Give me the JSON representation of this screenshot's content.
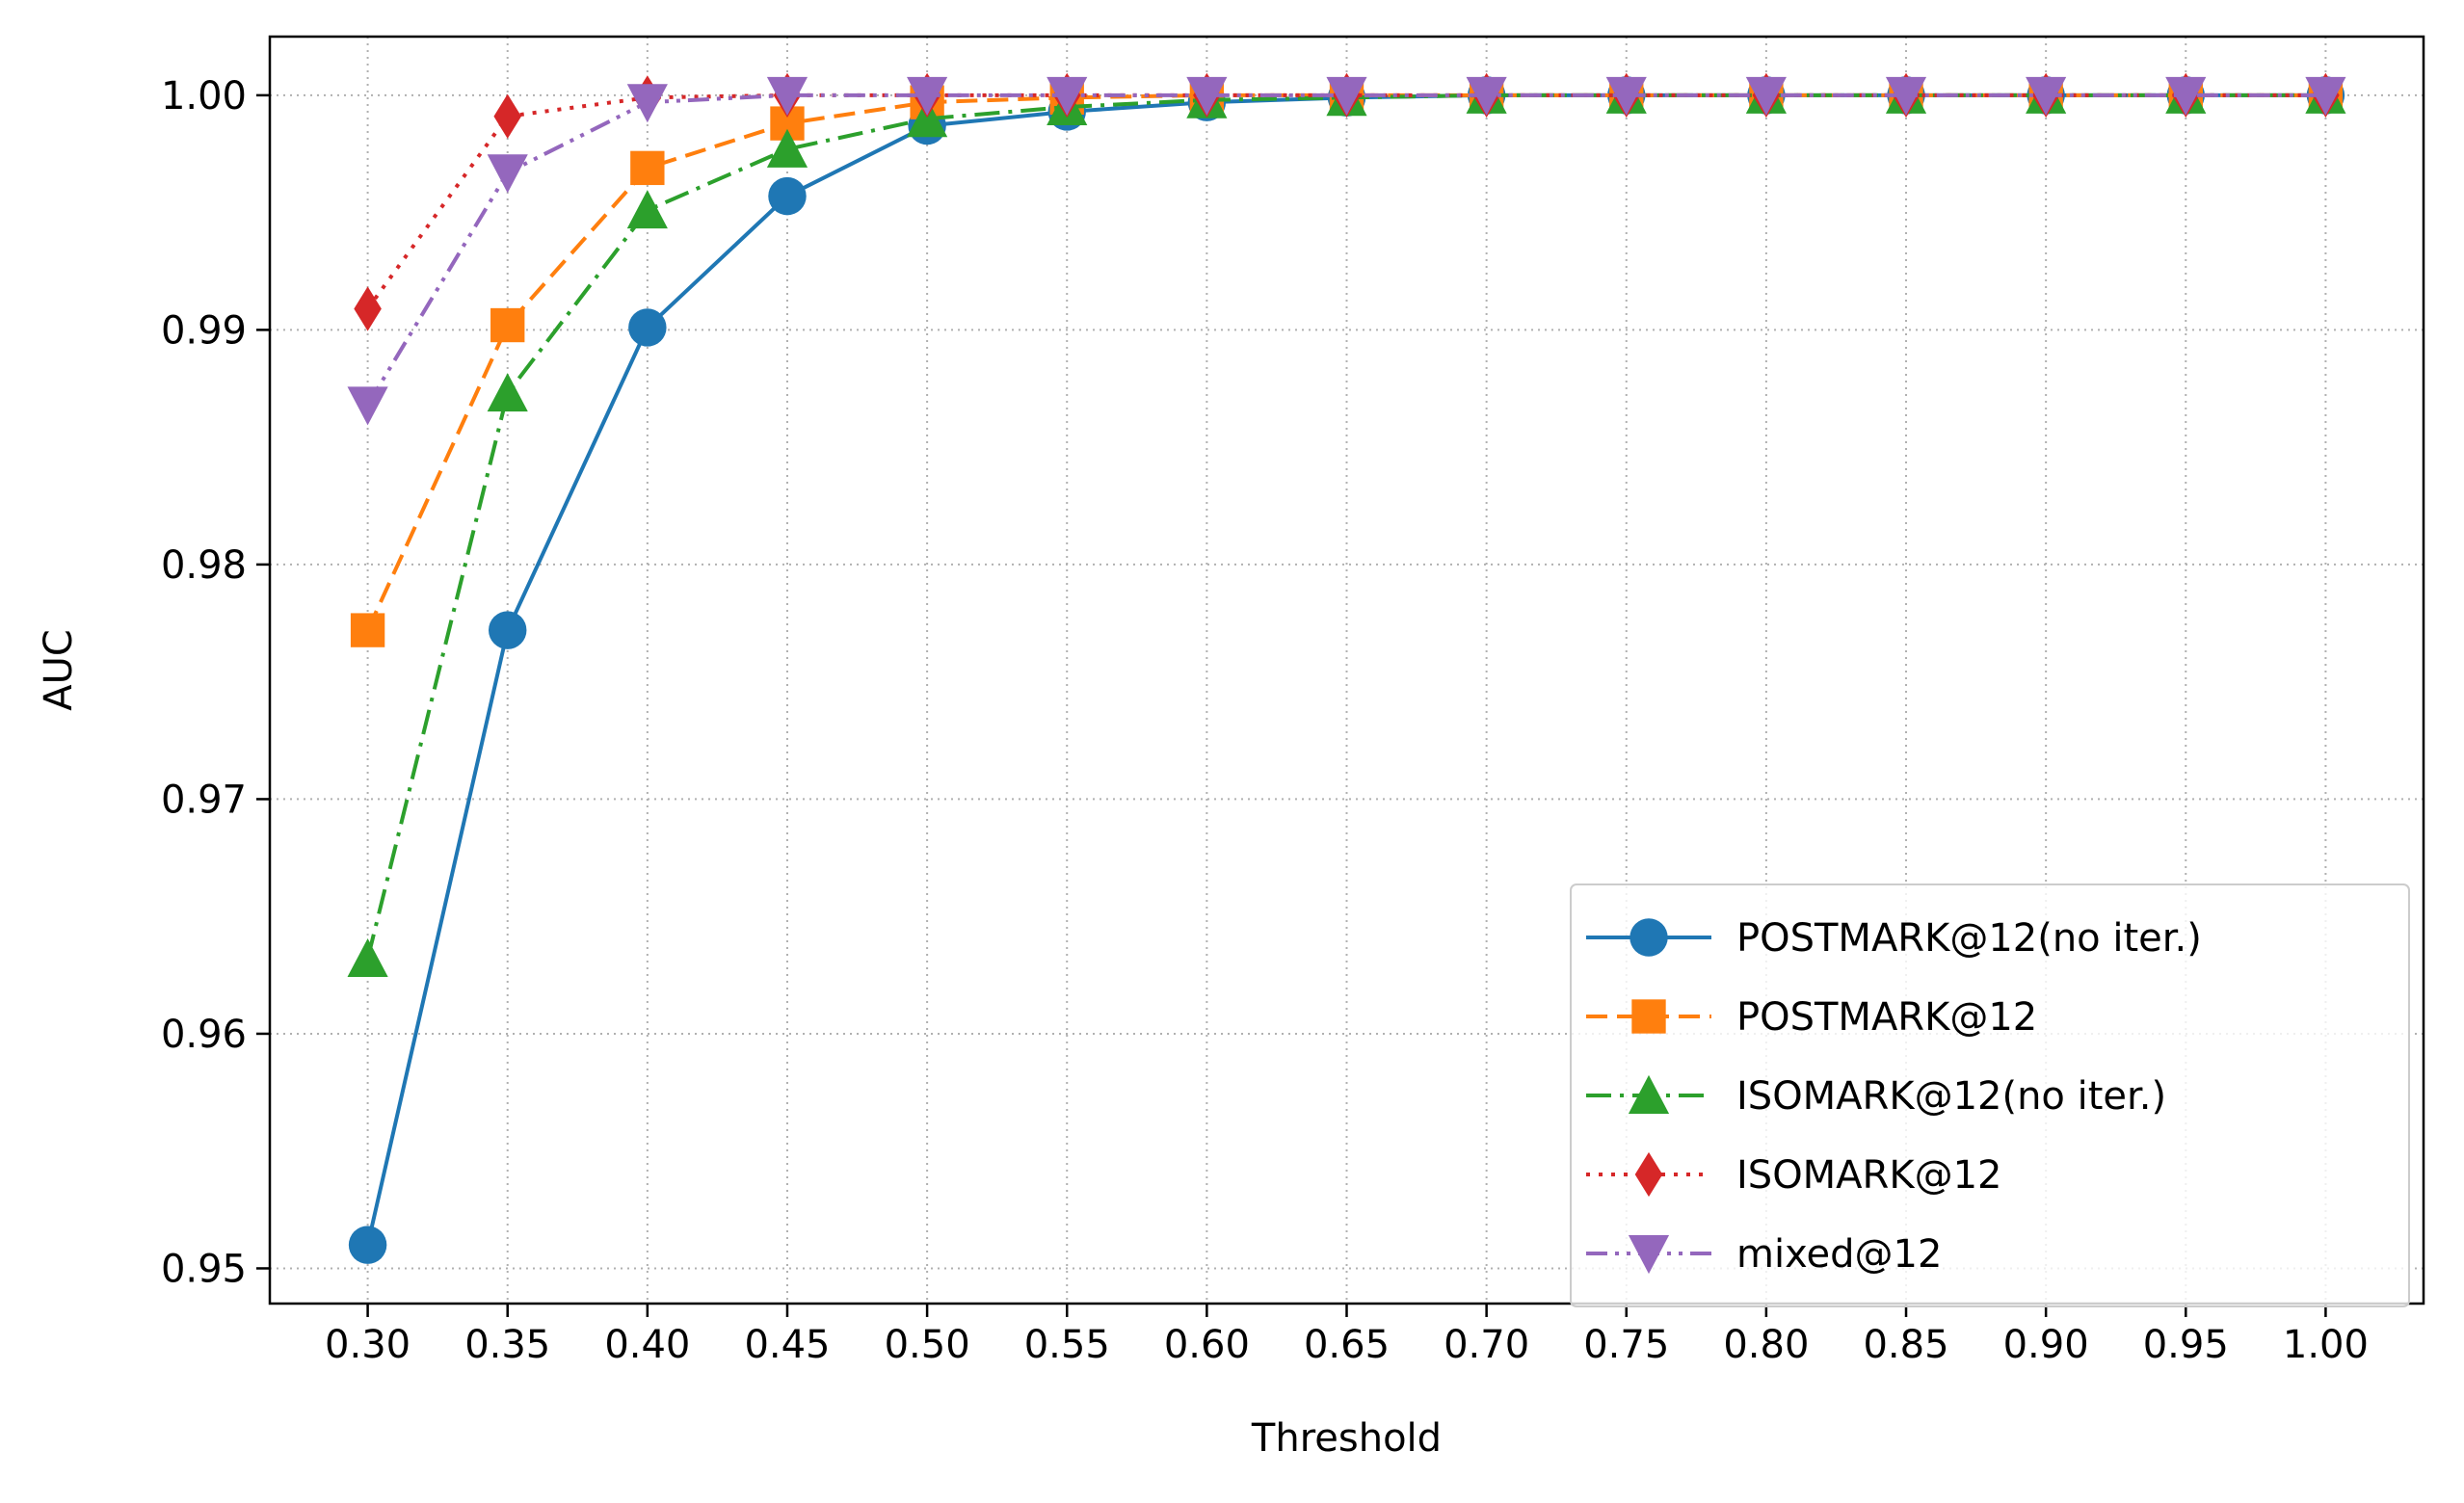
{
  "chart_data": {
    "type": "line",
    "title": "",
    "xlabel": "Threshold",
    "ylabel": "AUC",
    "x": [
      0.3,
      0.35,
      0.4,
      0.45,
      0.5,
      0.55,
      0.6,
      0.65,
      0.7,
      0.75,
      0.8,
      0.85,
      0.9,
      0.95,
      1.0
    ],
    "x_tick_labels": [
      "0.30",
      "0.35",
      "0.40",
      "0.45",
      "0.50",
      "0.55",
      "0.60",
      "0.65",
      "0.70",
      "0.75",
      "0.80",
      "0.85",
      "0.90",
      "0.95",
      "1.00"
    ],
    "y_ticks": [
      0.95,
      0.96,
      0.97,
      0.98,
      0.99,
      1.0
    ],
    "y_tick_labels": [
      "0.95",
      "0.96",
      "0.97",
      "0.98",
      "0.99",
      "1.00"
    ],
    "xlim": [
      0.265,
      1.035
    ],
    "ylim": [
      0.9485,
      1.0025
    ],
    "grid": true,
    "legend_position": "lower-right",
    "series": [
      {
        "name": "POSTMARK@12(no iter.)",
        "color": "#1f77b4",
        "line_style": "solid",
        "marker": "circle",
        "values": [
          0.951,
          0.9772,
          0.9901,
          0.9957,
          0.9987,
          0.9993,
          0.9997,
          0.9999,
          1.0,
          1.0,
          1.0,
          1.0,
          1.0,
          1.0,
          1.0
        ]
      },
      {
        "name": "POSTMARK@12",
        "color": "#ff7f0e",
        "line_style": "dashed",
        "marker": "square",
        "values": [
          0.9772,
          0.9902,
          0.9969,
          0.9988,
          0.9997,
          0.9999,
          1.0,
          1.0,
          1.0,
          1.0,
          1.0,
          1.0,
          1.0,
          1.0,
          1.0
        ]
      },
      {
        "name": "ISOMARK@12(no iter.)",
        "color": "#2ca02c",
        "line_style": "dashdot",
        "marker": "triangle-up",
        "values": [
          0.9632,
          0.9873,
          0.9951,
          0.9977,
          0.999,
          0.9995,
          0.9998,
          0.9999,
          1.0,
          1.0,
          1.0,
          1.0,
          1.0,
          1.0,
          1.0
        ]
      },
      {
        "name": "ISOMARK@12",
        "color": "#d62728",
        "line_style": "dotted",
        "marker": "diamond",
        "values": [
          0.9909,
          0.9991,
          0.9999,
          1.0,
          1.0,
          1.0,
          1.0,
          1.0,
          1.0,
          1.0,
          1.0,
          1.0,
          1.0,
          1.0,
          1.0
        ]
      },
      {
        "name": "mixed@12",
        "color": "#9467bd",
        "line_style": "dashdotdot",
        "marker": "triangle-down",
        "values": [
          0.9868,
          0.9967,
          0.9997,
          1.0,
          1.0,
          1.0,
          1.0,
          1.0,
          1.0,
          1.0,
          1.0,
          1.0,
          1.0,
          1.0,
          1.0
        ]
      }
    ]
  }
}
